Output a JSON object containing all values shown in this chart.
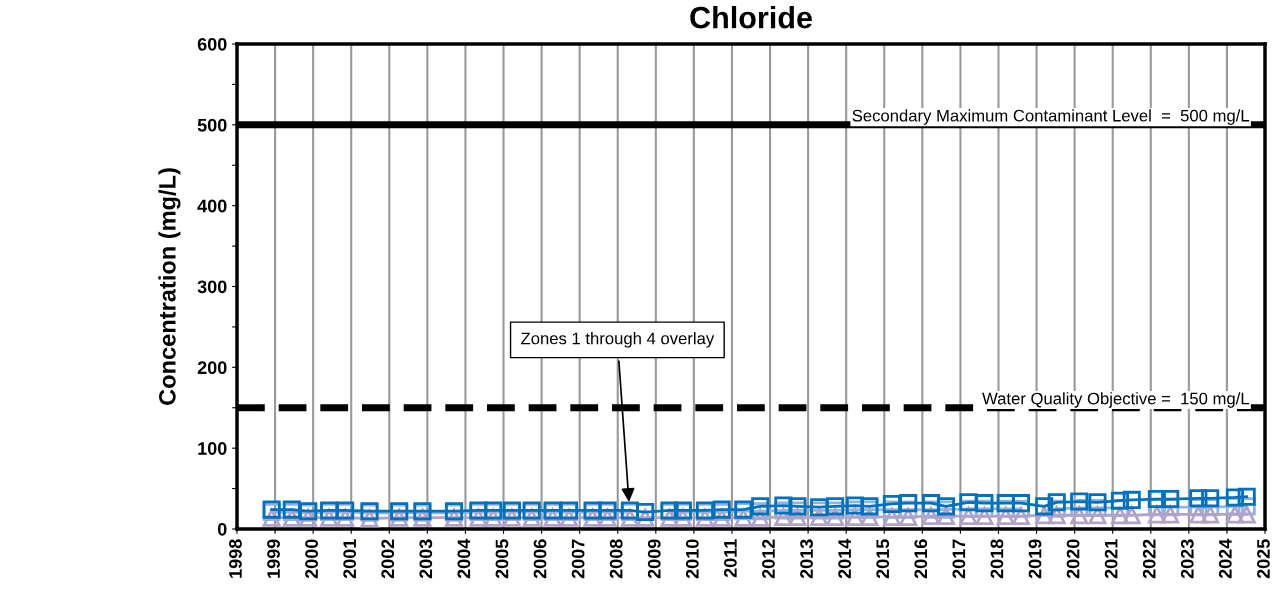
{
  "chart_data": {
    "type": "line",
    "title": "Chloride",
    "ylabel": "Concentration (mg/L)",
    "xlim": [
      1998,
      2025
    ],
    "xticks": [
      1998,
      1999,
      2000,
      2001,
      2002,
      2003,
      2004,
      2005,
      2006,
      2007,
      2008,
      2009,
      2010,
      2011,
      2012,
      2013,
      2014,
      2015,
      2016,
      2017,
      2018,
      2019,
      2020,
      2021,
      2022,
      2023,
      2024,
      2025
    ],
    "ylim": [
      0,
      600
    ],
    "yticks": [
      0,
      {
        "value": 50,
        "label": null
      },
      100,
      {
        "value": 150,
        "label": null
      },
      200,
      {
        "value": 250,
        "label": null
      },
      300,
      {
        "value": 350,
        "label": null
      },
      400,
      {
        "value": 450,
        "label": null
      },
      500,
      {
        "value": 550,
        "label": null
      },
      600
    ],
    "grid": "x",
    "legend": false,
    "x": [
      1998.91,
      1999.44,
      1999.87,
      2000.42,
      2000.84,
      2001.48,
      2002.26,
      2002.87,
      2003.7,
      2004.34,
      2004.73,
      2005.22,
      2005.74,
      2006.29,
      2006.72,
      2007.34,
      2007.73,
      2008.32,
      2008.72,
      2009.36,
      2009.71,
      2010.29,
      2010.73,
      2011.3,
      2011.74,
      2012.35,
      2012.72,
      2013.29,
      2013.71,
      2014.23,
      2014.61,
      2015.2,
      2015.63,
      2016.23,
      2016.62,
      2017.21,
      2017.63,
      2018.19,
      2018.59,
      2019.2,
      2019.53,
      2020.12,
      2020.6,
      2021.19,
      2021.5,
      2022.16,
      2022.51,
      2023.25,
      2023.56,
      2024.21,
      2024.52
    ],
    "series": [
      {
        "color": "#8db4e2",
        "marker": "square",
        "values": [
          21,
          21,
          20,
          21,
          21,
          20,
          20,
          20,
          20,
          21,
          21,
          21,
          21,
          21,
          21,
          21,
          21,
          21,
          null,
          21,
          21,
          21,
          21,
          22,
          22,
          23,
          23,
          23,
          23,
          24,
          24,
          24,
          24,
          24,
          24,
          25,
          25,
          25,
          25,
          null,
          25,
          26,
          26,
          26,
          null,
          27,
          27,
          27,
          27,
          28,
          28
        ]
      },
      {
        "color": "#b3a2c7",
        "marker": "triangle",
        "values": [
          14,
          14,
          14,
          14,
          14,
          13,
          14,
          14,
          14,
          14,
          14,
          14,
          14,
          14,
          14,
          14,
          14,
          14,
          14,
          14,
          14,
          14,
          14,
          14,
          14,
          15,
          15,
          15,
          15,
          15,
          15,
          15,
          15,
          16,
          16,
          16,
          16,
          16,
          16,
          17,
          17,
          17,
          17,
          17,
          17,
          18,
          18,
          18,
          18,
          18,
          18
        ]
      },
      {
        "color": "#0070c0",
        "marker": "square",
        "values": [
          24,
          24,
          22,
          23,
          23,
          22,
          22,
          22,
          22,
          23,
          23,
          23,
          23,
          23,
          23,
          23,
          23,
          23,
          21,
          23,
          23,
          23,
          24,
          24,
          28,
          29,
          28,
          27,
          28,
          29,
          28,
          31,
          32,
          32,
          28,
          33,
          32,
          32,
          32,
          28,
          33,
          34,
          33,
          35,
          36,
          37,
          37,
          38,
          38,
          39,
          40
        ]
      }
    ],
    "ref_lines": [
      {
        "axis": "y",
        "value": 500,
        "label": "Secondary Maximum Contaminant Level  =  500 mg/L",
        "color": "#000000",
        "line_style": "solid"
      },
      {
        "axis": "y",
        "value": 150,
        "label": "Water Quality Objective =  150 mg/L",
        "color": "#000000",
        "line_style": "dashed"
      }
    ],
    "annotations": [
      {
        "text": "Zones 1 through 4 overlay",
        "x": 2008.3,
        "y": 30
      }
    ]
  }
}
